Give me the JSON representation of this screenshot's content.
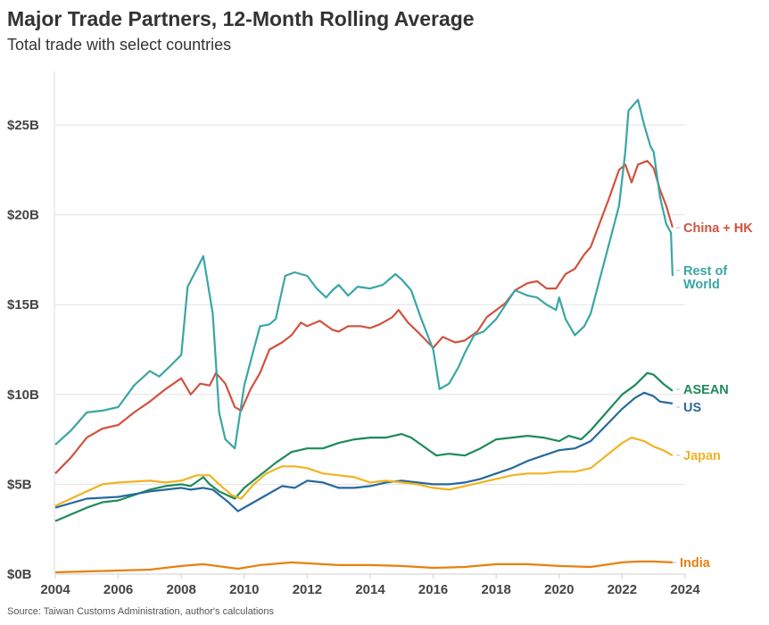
{
  "title": "Major Trade Partners, 12-Month Rolling Average",
  "subtitle": "Total trade with select countries",
  "source": "Source: Taiwan Customs Administration, author's calculations",
  "chart_data": {
    "type": "line",
    "title": "Major Trade Partners, 12-Month Rolling Average",
    "subtitle": "Total trade with select countries",
    "xlabel": "",
    "ylabel": "",
    "xlim": [
      2004,
      2024
    ],
    "ylim": [
      0,
      28
    ],
    "x_ticks": [
      2004,
      2006,
      2008,
      2010,
      2012,
      2014,
      2016,
      2018,
      2020,
      2022,
      2024
    ],
    "x_tick_labels": [
      "2004",
      "2006",
      "2008",
      "2010",
      "2012",
      "2014",
      "2016",
      "2018",
      "2020",
      "2022",
      "2024"
    ],
    "y_ticks": [
      0,
      5,
      10,
      15,
      20,
      25
    ],
    "y_tick_labels": [
      "$0B",
      "$5B",
      "$10B",
      "$15B",
      "$20B",
      "$25B"
    ],
    "grid": "horizontal",
    "legend": "direct labels at right",
    "series": [
      {
        "name": "China + HK",
        "color": "#d0533f",
        "x": [
          2004,
          2004.5,
          2005,
          2005.5,
          2006,
          2006.5,
          2007,
          2007.5,
          2008,
          2008.3,
          2008.6,
          2008.9,
          2009.1,
          2009.4,
          2009.7,
          2009.9,
          2010.2,
          2010.5,
          2010.8,
          2011.2,
          2011.5,
          2011.8,
          2012,
          2012.4,
          2012.8,
          2013,
          2013.3,
          2013.7,
          2014,
          2014.3,
          2014.7,
          2014.9,
          2015.2,
          2015.5,
          2016,
          2016.3,
          2016.7,
          2017,
          2017.4,
          2017.7,
          2018,
          2018.3,
          2018.6,
          2019,
          2019.3,
          2019.6,
          2019.9,
          2020.2,
          2020.5,
          2020.8,
          2021,
          2021.3,
          2021.6,
          2021.9,
          2022.1,
          2022.3,
          2022.5,
          2022.8,
          2023,
          2023.2,
          2023.4,
          2023.6
        ],
        "y": [
          5.6,
          6.5,
          7.6,
          8.1,
          8.3,
          9.0,
          9.6,
          10.3,
          10.9,
          10.0,
          10.6,
          10.5,
          11.2,
          10.6,
          9.3,
          9.1,
          10.3,
          11.2,
          12.5,
          12.9,
          13.3,
          14.0,
          13.8,
          14.1,
          13.6,
          13.5,
          13.8,
          13.8,
          13.7,
          13.9,
          14.3,
          14.7,
          14.0,
          13.5,
          12.6,
          13.2,
          12.9,
          13.0,
          13.5,
          14.3,
          14.7,
          15.1,
          15.8,
          16.2,
          16.3,
          15.9,
          15.9,
          16.7,
          17.0,
          17.8,
          18.2,
          19.6,
          21.0,
          22.5,
          22.8,
          21.8,
          22.8,
          23.0,
          22.6,
          21.4,
          20.5,
          19.3
        ]
      },
      {
        "name": "Rest of World",
        "color": "#3aa6a5",
        "x": [
          2004,
          2004.5,
          2005,
          2005.5,
          2006,
          2006.5,
          2007,
          2007.3,
          2007.6,
          2008,
          2008.2,
          2008.5,
          2008.7,
          2009,
          2009.2,
          2009.4,
          2009.7,
          2010,
          2010.3,
          2010.5,
          2010.8,
          2011,
          2011.3,
          2011.6,
          2012,
          2012.3,
          2012.6,
          2012.8,
          2013,
          2013.3,
          2013.6,
          2014,
          2014.4,
          2014.8,
          2015,
          2015.3,
          2015.6,
          2016,
          2016.2,
          2016.5,
          2016.8,
          2017,
          2017.3,
          2017.6,
          2018,
          2018.3,
          2018.6,
          2019,
          2019.3,
          2019.6,
          2019.9,
          2020,
          2020.2,
          2020.5,
          2020.8,
          2021,
          2021.3,
          2021.6,
          2021.9,
          2022.1,
          2022.2,
          2022.5,
          2022.7,
          2022.9,
          2023,
          2023.2,
          2023.4,
          2023.55,
          2023.6
        ],
        "y": [
          7.2,
          8.0,
          9.0,
          9.1,
          9.3,
          10.5,
          11.3,
          11.0,
          11.5,
          12.2,
          16.0,
          17.0,
          17.7,
          14.5,
          9.0,
          7.5,
          7.0,
          10.5,
          12.5,
          13.8,
          13.9,
          14.2,
          16.6,
          16.8,
          16.6,
          15.9,
          15.4,
          15.8,
          16.1,
          15.5,
          16.0,
          15.9,
          16.1,
          16.7,
          16.4,
          15.8,
          14.3,
          12.5,
          10.3,
          10.6,
          11.5,
          12.3,
          13.3,
          13.5,
          14.2,
          15.0,
          15.8,
          15.5,
          15.4,
          15.0,
          14.7,
          15.4,
          14.2,
          13.3,
          13.8,
          14.5,
          16.5,
          18.5,
          20.5,
          23.5,
          25.8,
          26.4,
          25.0,
          23.8,
          23.5,
          21.0,
          19.5,
          19.0,
          16.6
        ]
      },
      {
        "name": "ASEAN",
        "color": "#1e8a5a",
        "x": [
          2004,
          2005,
          2005.5,
          2006,
          2007,
          2007.5,
          2008,
          2008.3,
          2008.7,
          2008.9,
          2009.2,
          2009.7,
          2010,
          2010.5,
          2011,
          2011.5,
          2012,
          2012.5,
          2013,
          2013.5,
          2014,
          2014.5,
          2015,
          2015.3,
          2015.7,
          2016.1,
          2016.5,
          2017,
          2017.5,
          2018,
          2018.5,
          2019,
          2019.5,
          2020,
          2020.3,
          2020.7,
          2021,
          2021.5,
          2022,
          2022.4,
          2022.8,
          2023,
          2023.3,
          2023.6
        ],
        "y": [
          2.95,
          3.7,
          4.0,
          4.1,
          4.7,
          4.9,
          5.0,
          4.9,
          5.4,
          5.0,
          4.6,
          4.2,
          4.8,
          5.5,
          6.2,
          6.8,
          7.0,
          7.0,
          7.3,
          7.5,
          7.6,
          7.6,
          7.8,
          7.6,
          7.1,
          6.6,
          6.7,
          6.6,
          7.0,
          7.5,
          7.6,
          7.7,
          7.6,
          7.4,
          7.7,
          7.5,
          8.0,
          9.0,
          10.0,
          10.5,
          11.2,
          11.1,
          10.6,
          10.2
        ]
      },
      {
        "name": "US",
        "color": "#26699e",
        "x": [
          2004,
          2005,
          2006,
          2007,
          2008,
          2008.3,
          2008.7,
          2009,
          2009.5,
          2009.8,
          2010.2,
          2010.7,
          2011.2,
          2011.6,
          2012,
          2012.5,
          2013,
          2013.5,
          2014,
          2014.5,
          2015,
          2015.5,
          2016,
          2016.5,
          2017,
          2017.5,
          2018,
          2018.5,
          2019,
          2019.5,
          2020,
          2020.5,
          2021,
          2021.5,
          2022,
          2022.4,
          2022.7,
          2023,
          2023.2,
          2023.6
        ],
        "y": [
          3.7,
          4.2,
          4.3,
          4.6,
          4.8,
          4.7,
          4.8,
          4.7,
          4.0,
          3.5,
          3.9,
          4.4,
          4.9,
          4.8,
          5.2,
          5.1,
          4.8,
          4.8,
          4.9,
          5.1,
          5.2,
          5.1,
          5.0,
          5.0,
          5.1,
          5.3,
          5.6,
          5.9,
          6.3,
          6.6,
          6.9,
          7.0,
          7.4,
          8.3,
          9.2,
          9.8,
          10.1,
          9.9,
          9.6,
          9.5
        ]
      },
      {
        "name": "Japan",
        "color": "#f0b323",
        "x": [
          2004,
          2005,
          2005.5,
          2006,
          2007,
          2007.5,
          2008,
          2008.5,
          2008.9,
          2009.2,
          2009.6,
          2009.9,
          2010.3,
          2010.7,
          2011.2,
          2011.6,
          2012,
          2012.5,
          2013,
          2013.5,
          2014,
          2014.5,
          2015,
          2015.5,
          2016,
          2016.5,
          2017,
          2017.5,
          2018,
          2018.5,
          2019,
          2019.5,
          2020,
          2020.5,
          2021,
          2021.5,
          2022,
          2022.3,
          2022.7,
          2023,
          2023.3,
          2023.6
        ],
        "y": [
          3.8,
          4.6,
          5.0,
          5.1,
          5.2,
          5.1,
          5.2,
          5.5,
          5.5,
          5.0,
          4.4,
          4.2,
          5.0,
          5.6,
          6.0,
          6.0,
          5.9,
          5.6,
          5.5,
          5.4,
          5.1,
          5.2,
          5.1,
          5.0,
          4.8,
          4.7,
          4.9,
          5.1,
          5.3,
          5.5,
          5.6,
          5.6,
          5.7,
          5.7,
          5.9,
          6.6,
          7.3,
          7.6,
          7.4,
          7.1,
          6.9,
          6.6
        ]
      },
      {
        "name": "India",
        "color": "#e8800f",
        "x": [
          2004,
          2006,
          2007,
          2008,
          2008.7,
          2009.8,
          2010.5,
          2011.5,
          2012,
          2013,
          2014,
          2015,
          2016,
          2017,
          2018,
          2019,
          2020,
          2021,
          2022,
          2022.5,
          2023,
          2023.6
        ],
        "y": [
          0.1,
          0.2,
          0.25,
          0.45,
          0.55,
          0.3,
          0.5,
          0.65,
          0.6,
          0.5,
          0.5,
          0.45,
          0.35,
          0.4,
          0.55,
          0.55,
          0.45,
          0.4,
          0.65,
          0.7,
          0.7,
          0.65
        ]
      }
    ]
  }
}
